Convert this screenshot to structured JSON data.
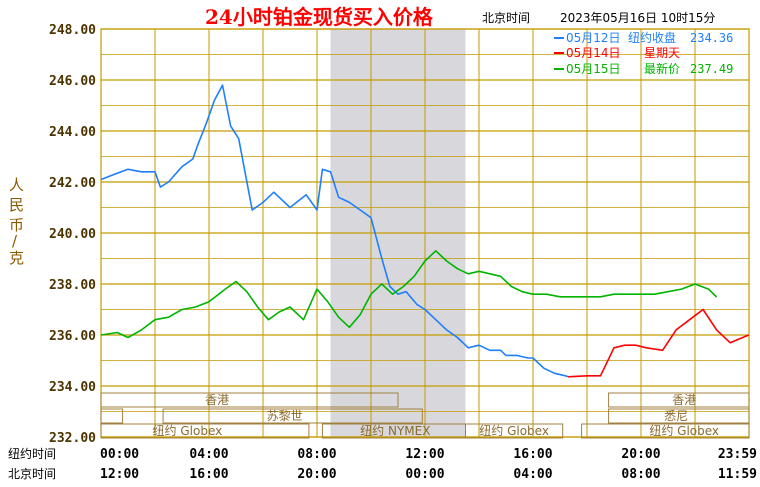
{
  "header": {
    "title": "24小时铂金现货买入价格",
    "tz_label": "北京时间",
    "timestamp": "2023年05月16日 10时15分"
  },
  "legend": [
    {
      "date": "05月12日",
      "label": "纽约收盘",
      "value": "234.36",
      "color": "#1e7fff"
    },
    {
      "date": "05月14日",
      "label": "星期天",
      "value": "",
      "color": "#ff0000"
    },
    {
      "date": "05月15日",
      "label": "最新价",
      "value": "237.49",
      "color": "#00b400"
    }
  ],
  "y_axis_label_chars": [
    "人",
    "民",
    "币",
    "/",
    "克"
  ],
  "row_labels": {
    "ny": "纽约时间",
    "bj": "北京时间"
  },
  "colors": {
    "axis_text": "#4d3300",
    "grid": "#c49a00",
    "title": "#ff0000",
    "band": "#d8d8dc"
  },
  "sessions": [
    {
      "label": "香港",
      "row": 0
    },
    {
      "label": "香港",
      "row": 0
    },
    {
      "label": "苏黎世",
      "row": 1
    },
    {
      "label": "悉尼",
      "row": 1
    },
    {
      "label": "纽约 Globex",
      "row": 2
    },
    {
      "label": "纽约 NYMEX",
      "row": 2
    },
    {
      "label": "纽约 Globex",
      "row": 2
    },
    {
      "label": "纽约 Globex",
      "row": 2
    }
  ],
  "chart_data": {
    "type": "line",
    "title": "24小时铂金现货买入价格",
    "ylabel": "人民币/克",
    "ylim": [
      232,
      248
    ],
    "yticks": [
      "248.00",
      "246.00",
      "244.00",
      "242.00",
      "240.00",
      "238.00",
      "236.00",
      "234.00",
      "232.00"
    ],
    "xlim_hours": [
      0,
      24
    ],
    "x_ticks_ny": [
      "00:00",
      "04:00",
      "08:00",
      "12:00",
      "16:00",
      "20:00",
      "23:59"
    ],
    "x_ticks_bj": [
      "12:00",
      "16:00",
      "20:00",
      "00:00",
      "04:00",
      "08:00",
      "11:59"
    ],
    "grid": true,
    "shaded_band_hours": [
      8.5,
      13.5
    ],
    "series": [
      {
        "name": "05月12日 纽约收盘",
        "color": "#1e7fff",
        "x": [
          0,
          0.5,
          1,
          1.5,
          2,
          2.2,
          2.5,
          3,
          3.4,
          3.6,
          3.9,
          4.2,
          4.5,
          4.8,
          5.1,
          5.6,
          6,
          6.4,
          7,
          7.6,
          8,
          8.2,
          8.5,
          8.8,
          9.2,
          9.6,
          10,
          10.4,
          10.7,
          11,
          11.3,
          11.7,
          12,
          12.4,
          12.8,
          13.2,
          13.6,
          14,
          14.4,
          14.8,
          15,
          15.4,
          15.8,
          16,
          16.4,
          16.8,
          17.2,
          17.3
        ],
        "y": [
          242.1,
          242.3,
          242.5,
          242.4,
          242.4,
          241.8,
          242.0,
          242.6,
          242.9,
          243.5,
          244.3,
          245.2,
          245.8,
          244.2,
          243.7,
          240.9,
          241.2,
          241.6,
          241.0,
          241.5,
          240.9,
          242.5,
          242.4,
          241.4,
          241.2,
          240.9,
          240.6,
          239.0,
          237.9,
          237.6,
          237.7,
          237.2,
          237.0,
          236.6,
          236.2,
          235.9,
          235.5,
          235.6,
          235.4,
          235.4,
          235.2,
          235.2,
          235.1,
          235.1,
          234.7,
          234.5,
          234.4,
          234.36
        ]
      },
      {
        "name": "05月14日 星期天",
        "color": "#ff0000",
        "x": [
          17.3,
          18,
          18.5,
          19,
          19.4,
          19.8,
          20.2,
          20.8,
          21.3,
          21.8,
          22.3,
          22.8,
          23.3,
          23.99
        ],
        "y": [
          234.36,
          234.4,
          234.4,
          235.5,
          235.6,
          235.6,
          235.5,
          235.4,
          236.2,
          236.6,
          237.0,
          236.2,
          235.7,
          236.0
        ]
      },
      {
        "name": "05月15日 最新价",
        "color": "#00b400",
        "x": [
          0,
          0.6,
          1,
          1.5,
          2,
          2.5,
          3,
          3.5,
          4,
          4.6,
          5,
          5.4,
          5.8,
          6.2,
          6.6,
          7,
          7.5,
          8,
          8.4,
          8.8,
          9.2,
          9.6,
          10,
          10.4,
          10.8,
          11.2,
          11.6,
          12,
          12.4,
          12.8,
          13.2,
          13.6,
          14,
          14.4,
          14.8,
          15.2,
          15.6,
          16,
          16.5,
          17,
          17.5,
          18,
          18.5,
          19,
          19.5,
          20,
          20.5,
          21,
          21.5,
          22,
          22.5,
          22.8
        ],
        "y": [
          236.0,
          236.1,
          235.9,
          236.2,
          236.6,
          236.7,
          237.0,
          237.1,
          237.3,
          237.8,
          238.1,
          237.7,
          237.1,
          236.6,
          236.9,
          237.1,
          236.6,
          237.8,
          237.3,
          236.7,
          236.3,
          236.8,
          237.6,
          238.0,
          237.6,
          237.9,
          238.3,
          238.9,
          239.3,
          238.9,
          238.6,
          238.4,
          238.5,
          238.4,
          238.3,
          237.9,
          237.7,
          237.6,
          237.6,
          237.5,
          237.5,
          237.5,
          237.5,
          237.6,
          237.6,
          237.6,
          237.6,
          237.7,
          237.8,
          238.0,
          237.8,
          237.49
        ]
      }
    ]
  }
}
